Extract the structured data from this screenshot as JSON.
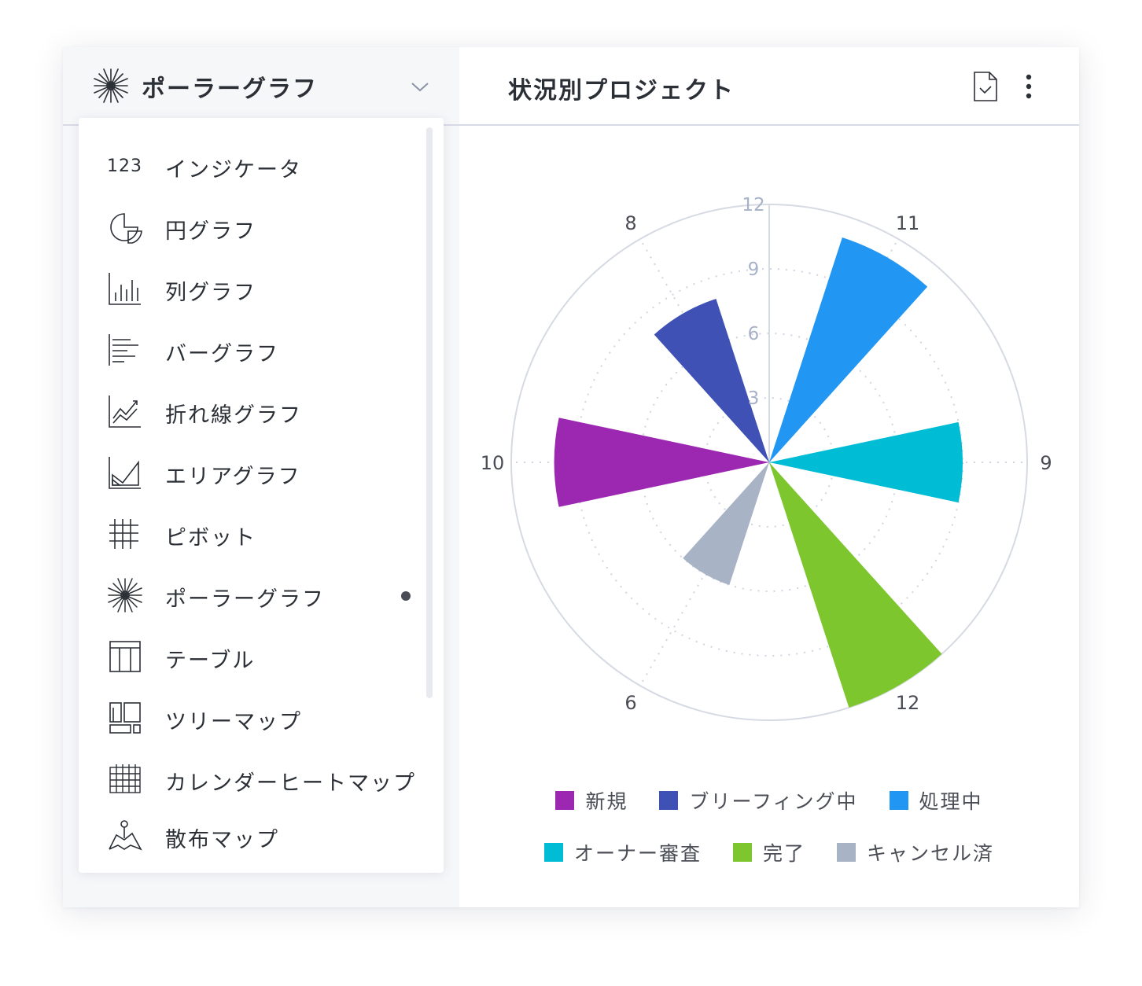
{
  "selector": {
    "title": "ポーラーグラフ",
    "icon": "polar-chart-icon"
  },
  "menu": {
    "items": [
      {
        "icon": "indicator-icon",
        "icon_text": "123",
        "label": "インジケータ",
        "selected": false
      },
      {
        "icon": "pie-chart-icon",
        "label": "円グラフ",
        "selected": false
      },
      {
        "icon": "column-chart-icon",
        "label": "列グラフ",
        "selected": false
      },
      {
        "icon": "bar-chart-icon",
        "label": "バーグラフ",
        "selected": false
      },
      {
        "icon": "line-chart-icon",
        "label": "折れ線グラフ",
        "selected": false
      },
      {
        "icon": "area-chart-icon",
        "label": "エリアグラフ",
        "selected": false
      },
      {
        "icon": "pivot-icon",
        "label": "ピボット",
        "selected": false
      },
      {
        "icon": "polar-chart-icon",
        "label": "ポーラーグラフ",
        "selected": true
      },
      {
        "icon": "table-icon",
        "label": "テーブル",
        "selected": false
      },
      {
        "icon": "treemap-icon",
        "label": "ツリーマップ",
        "selected": false
      },
      {
        "icon": "calendar-heatmap-icon",
        "label": "カレンダーヒートマップ",
        "selected": false
      },
      {
        "icon": "scatter-map-icon",
        "label": "散布マップ",
        "selected": false
      }
    ]
  },
  "header": {
    "title": "状況別プロジェクト",
    "export_icon": "export-file-icon",
    "more_icon": "more-vertical-icon"
  },
  "chart_data": {
    "type": "polar-area",
    "radial_max": 12,
    "radial_ticks": [
      "3",
      "6",
      "9",
      "12"
    ],
    "series": [
      {
        "name": "新規",
        "value": 10,
        "color": "#9c27b0"
      },
      {
        "name": "ブリーフィング中",
        "value": 8,
        "color": "#3f51b5"
      },
      {
        "name": "処理中",
        "value": 11,
        "color": "#2196f3"
      },
      {
        "name": "オーナー審査",
        "value": 9,
        "color": "#00bcd4"
      },
      {
        "name": "完了",
        "value": 12,
        "color": "#7dc62e"
      },
      {
        "name": "キャンセル済",
        "value": 6,
        "color": "#a8b4c6"
      }
    ],
    "grid": true,
    "legend_position": "bottom"
  }
}
